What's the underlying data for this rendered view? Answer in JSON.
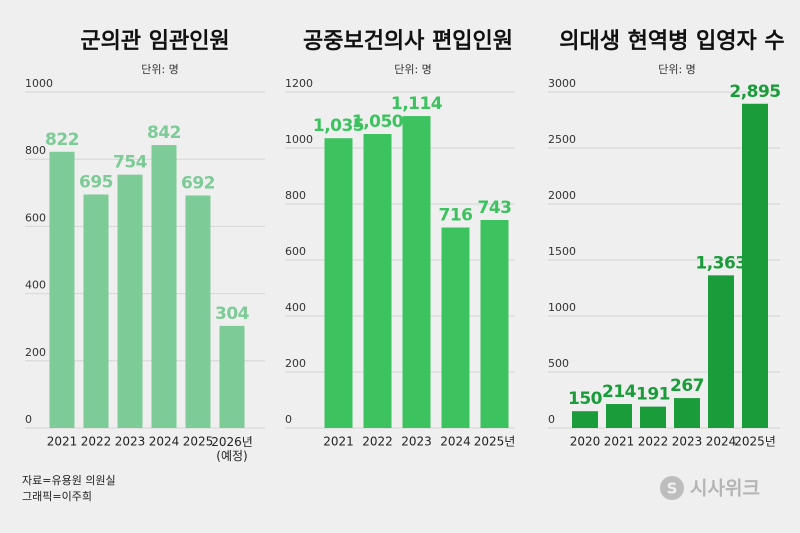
{
  "chart_data": [
    {
      "type": "bar",
      "title": "군의관 임관인원",
      "subtitle": "단위: 명",
      "categories": [
        "2021",
        "2022",
        "2023",
        "2024",
        "2025",
        "2026년\n(예정)"
      ],
      "values": [
        822,
        695,
        754,
        842,
        692,
        304
      ],
      "color": "#7dcb96",
      "ylim": [
        0,
        1000
      ],
      "yticks": [
        0,
        200,
        400,
        600,
        800,
        1000
      ]
    },
    {
      "type": "bar",
      "title": "공중보건의사 편입인원",
      "subtitle": "단위: 명",
      "categories": [
        "2021",
        "2022",
        "2023",
        "2024",
        "2025년"
      ],
      "values": [
        1035,
        1050,
        1114,
        716,
        743
      ],
      "value_labels": [
        "1,035",
        "1,050",
        "1,114",
        "716",
        "743"
      ],
      "color": "#3cc35f",
      "ylim": [
        0,
        1200
      ],
      "yticks": [
        0,
        200,
        400,
        600,
        800,
        1000,
        1200
      ]
    },
    {
      "type": "bar",
      "title": "의대생 현역병 입영자 수",
      "subtitle": "단위: 명",
      "categories": [
        "2020",
        "2021",
        "2022",
        "2023",
        "2024",
        "2025년"
      ],
      "values": [
        150,
        214,
        191,
        267,
        1363,
        2895
      ],
      "value_labels": [
        "150",
        "214",
        "191",
        "267",
        "1,363",
        "2,895"
      ],
      "color": "#1a9c3a",
      "ylim": [
        0,
        3000
      ],
      "yticks": [
        0,
        500,
        1000,
        1500,
        2000,
        2500,
        3000
      ]
    }
  ],
  "footer": {
    "source": "자료=유용원 의원실",
    "graphic": "그래픽=이주희",
    "watermark": "시사위크"
  }
}
